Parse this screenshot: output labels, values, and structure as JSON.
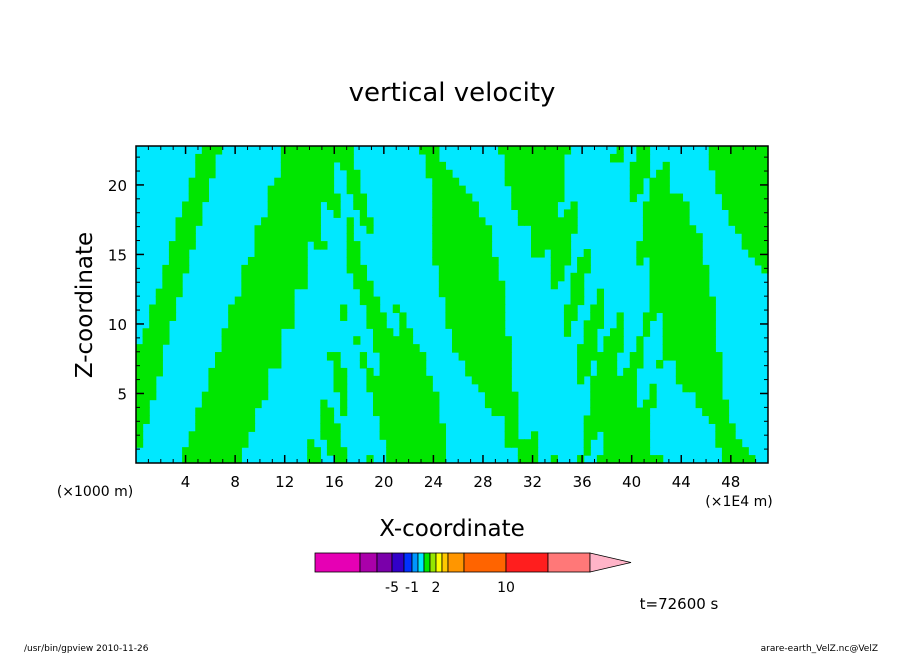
{
  "chart_data": {
    "type": "heatmap",
    "title": "vertical velocity",
    "xlabel": "X-coordinate",
    "ylabel": "Z-coordinate",
    "x_unit_left": "(×1000 m)",
    "x_unit_right": "(×1E4 m)",
    "xlim": [
      0,
      51
    ],
    "ylim": [
      0,
      22.8
    ],
    "x_ticks": [
      4,
      8,
      12,
      16,
      20,
      24,
      28,
      32,
      36,
      40,
      44,
      48
    ],
    "y_ticks": [
      5,
      10,
      15,
      20
    ],
    "colors": {
      "positive": "#00e600",
      "negative": "#00e8ff",
      "contour": "#000000"
    },
    "colorbar": {
      "colors": [
        "#e600b4",
        "#aa00aa",
        "#7a00aa",
        "#3200c8",
        "#0032ff",
        "#0096ff",
        "#00e8ff",
        "#00e600",
        "#96e600",
        "#ffff00",
        "#ffc800",
        "#ff9600",
        "#ff6400",
        "#ff1e1e",
        "#ff7878",
        "#ffb4c8"
      ],
      "labels": [
        "-5",
        "-1",
        "2",
        "10"
      ]
    },
    "time_label": "t=72600 s"
  },
  "footer": {
    "left": "/usr/bin/gpview   2010-11-26",
    "right": "arare-earth_VelZ.nc@VelZ"
  }
}
